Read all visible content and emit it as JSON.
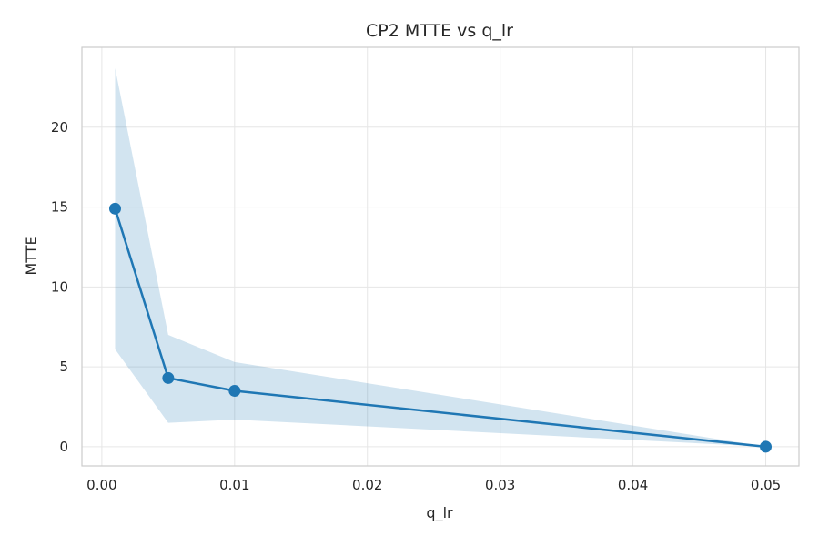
{
  "chart_data": {
    "type": "line",
    "title": "CP2 MTTE vs q_lr",
    "xlabel": "q_lr",
    "ylabel": "MTTE",
    "xlim": [
      -0.0015,
      0.0525
    ],
    "ylim": [
      -1.2,
      25
    ],
    "x_ticks": [
      0.0,
      0.01,
      0.02,
      0.03,
      0.04,
      0.05
    ],
    "x_tick_labels": [
      "0.00",
      "0.01",
      "0.02",
      "0.03",
      "0.04",
      "0.05"
    ],
    "y_ticks": [
      0,
      5,
      10,
      15,
      20
    ],
    "y_tick_labels": [
      "0",
      "5",
      "10",
      "15",
      "20"
    ],
    "grid": true,
    "series": [
      {
        "x": [
          0.001,
          0.005,
          0.01,
          0.05
        ],
        "y": [
          14.9,
          4.3,
          3.5,
          0.0
        ],
        "band_upper": [
          23.7,
          7.0,
          5.3,
          0.0
        ],
        "band_lower": [
          6.1,
          1.5,
          1.7,
          0.0
        ],
        "color": "#1f77b4",
        "band_color": "#1f77b4"
      }
    ]
  }
}
